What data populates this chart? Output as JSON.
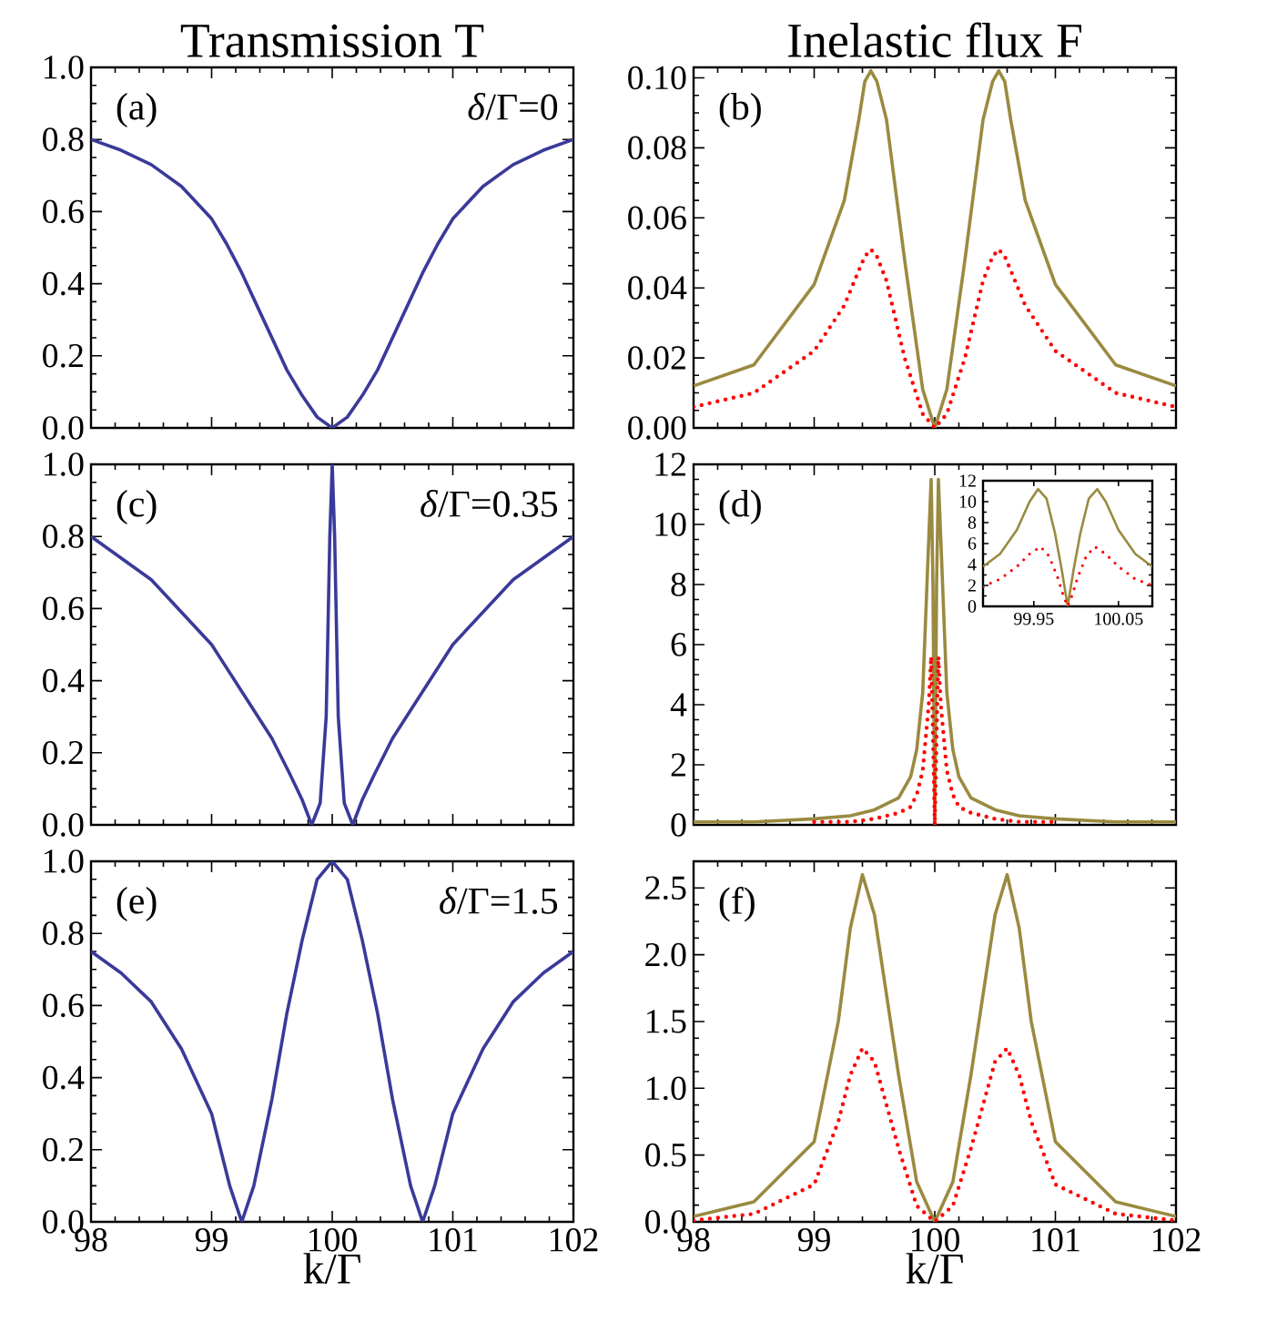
{
  "chart_data": [
    {
      "type": "line",
      "title": "Transmission T",
      "annotations": [
        "(a)",
        "*δ*/Γ=0"
      ],
      "xlim": [
        98,
        102
      ],
      "xticks": [
        98,
        99,
        100,
        101,
        102
      ],
      "ylim": [
        0,
        1
      ],
      "yticks": [
        {
          "value": 0,
          "label": "0.0"
        },
        {
          "value": 0.2,
          "label": "0.2"
        },
        {
          "value": 0.4,
          "label": "0.4"
        },
        {
          "value": 0.6,
          "label": "0.6"
        },
        {
          "value": 0.8,
          "label": "0.8"
        },
        {
          "value": 1,
          "label": "1.0"
        }
      ],
      "tick_labels": "y",
      "x": [
        98,
        98.25,
        98.5,
        98.75,
        99,
        99.125,
        99.25,
        99.375,
        99.5,
        99.625,
        99.75,
        99.875,
        100,
        100.125,
        100.25,
        100.375,
        100.5,
        100.625,
        100.75,
        100.875,
        101,
        101.25,
        101.5,
        101.75,
        102
      ],
      "series": [
        {
          "color": "#3a3a9a",
          "values": [
            0.8,
            0.77,
            0.73,
            0.67,
            0.58,
            0.51,
            0.43,
            0.34,
            0.25,
            0.16,
            0.09,
            0.03,
            0,
            0.03,
            0.09,
            0.16,
            0.25,
            0.34,
            0.43,
            0.51,
            0.58,
            0.67,
            0.73,
            0.77,
            0.8
          ]
        }
      ]
    },
    {
      "type": "line",
      "title": "Inelastic flux F",
      "annotations": [
        "(b)"
      ],
      "xlim": [
        98,
        102
      ],
      "xticks": [
        98,
        99,
        100,
        101,
        102
      ],
      "ylim": [
        0,
        0.103
      ],
      "yticks": [
        {
          "value": 0,
          "label": "0.00"
        },
        {
          "value": 0.02,
          "label": "0.02"
        },
        {
          "value": 0.04,
          "label": "0.04"
        },
        {
          "value": 0.06,
          "label": "0.06"
        },
        {
          "value": 0.08,
          "label": "0.08"
        },
        {
          "value": 0.1,
          "label": "0.10"
        }
      ],
      "tick_labels": "y",
      "x": [
        98,
        98.5,
        99,
        99.25,
        99.37,
        99.42,
        99.47,
        99.52,
        99.6,
        99.75,
        99.9,
        100,
        100.1,
        100.25,
        100.4,
        100.48,
        100.53,
        100.58,
        100.63,
        100.75,
        101,
        101.5,
        102
      ],
      "series": [
        {
          "color": "#9a8a40",
          "values": [
            0.012,
            0.018,
            0.041,
            0.065,
            0.088,
            0.099,
            0.102,
            0.099,
            0.088,
            0.048,
            0.011,
            0,
            0.011,
            0.048,
            0.088,
            0.099,
            0.102,
            0.099,
            0.088,
            0.065,
            0.041,
            0.018,
            0.012
          ]
        },
        {
          "color": "#ff0000",
          "line_style": "dotted",
          "values": [
            0.006,
            0.01,
            0.022,
            0.035,
            0.045,
            0.049,
            0.051,
            0.049,
            0.042,
            0.02,
            0.004,
            0,
            0.004,
            0.02,
            0.042,
            0.049,
            0.051,
            0.049,
            0.045,
            0.035,
            0.022,
            0.01,
            0.006
          ]
        }
      ]
    },
    {
      "type": "line",
      "annotations": [
        "(c)",
        "*δ*/Γ=0.35"
      ],
      "xlim": [
        98,
        102
      ],
      "xticks": [
        98,
        99,
        100,
        101,
        102
      ],
      "ylim": [
        0,
        1
      ],
      "yticks": [
        {
          "value": 0,
          "label": "0.0"
        },
        {
          "value": 0.2,
          "label": "0.2"
        },
        {
          "value": 0.4,
          "label": "0.4"
        },
        {
          "value": 0.6,
          "label": "0.6"
        },
        {
          "value": 0.8,
          "label": "0.8"
        },
        {
          "value": 1,
          "label": "1.0"
        }
      ],
      "tick_labels": "y",
      "x": [
        98,
        98.5,
        99,
        99.25,
        99.5,
        99.65,
        99.75,
        99.83,
        99.9,
        99.95,
        99.98,
        100,
        100.02,
        100.05,
        100.1,
        100.17,
        100.25,
        100.35,
        100.5,
        100.75,
        101,
        101.5,
        102
      ],
      "series": [
        {
          "color": "#3a3a9a",
          "values": [
            0.8,
            0.68,
            0.5,
            0.37,
            0.24,
            0.14,
            0.07,
            0,
            0.06,
            0.3,
            0.8,
            1.0,
            0.8,
            0.3,
            0.06,
            0,
            0.07,
            0.14,
            0.24,
            0.37,
            0.5,
            0.68,
            0.8
          ]
        }
      ]
    },
    {
      "type": "line",
      "annotations": [
        "(d)"
      ],
      "xlim": [
        98,
        102
      ],
      "xticks": [
        98,
        99,
        100,
        101,
        102
      ],
      "ylim": [
        0,
        12
      ],
      "yticks": [
        0,
        2,
        4,
        6,
        8,
        10,
        12
      ],
      "tick_labels": "y",
      "x": [
        98,
        98.5,
        99,
        99.3,
        99.5,
        99.7,
        99.8,
        99.85,
        99.9,
        99.95,
        99.97,
        99.985,
        100,
        100.015,
        100.03,
        100.05,
        100.1,
        100.15,
        100.2,
        100.3,
        100.5,
        100.7,
        101,
        101.5,
        102
      ],
      "series": [
        {
          "color": "#9a8a40",
          "values": [
            0.1,
            0.1,
            0.2,
            0.3,
            0.5,
            0.9,
            1.6,
            2.5,
            4.4,
            9.5,
            11.5,
            8,
            0,
            8,
            11.5,
            9.5,
            4.4,
            2.5,
            1.6,
            0.9,
            0.5,
            0.3,
            0.2,
            0.1,
            0.1
          ]
        },
        {
          "color": "#ff0000",
          "line_style": "dotted",
          "values": [
            null,
            null,
            0.1,
            0.1,
            0.2,
            0.4,
            0.6,
            1.0,
            1.8,
            4.0,
            5.6,
            3,
            0,
            3,
            5.6,
            4.0,
            1.8,
            1.0,
            0.6,
            0.4,
            0.2,
            0.1,
            0.1,
            null,
            null
          ]
        }
      ]
    },
    {
      "type": "line",
      "xlim": [
        99.89,
        100.09
      ],
      "xticks": [
        99.95,
        100.05
      ],
      "ylim": [
        0,
        12
      ],
      "yticks": [
        0,
        2,
        4,
        6,
        8,
        10,
        12
      ],
      "series": [
        {
          "color": "#9a8a40",
          "x": [
            99.89,
            99.91,
            99.93,
            99.945,
            99.955,
            99.965,
            99.975,
            99.983,
            99.99,
            99.997,
            100.005,
            100.015,
            100.025,
            100.035,
            100.05,
            100.07,
            100.09
          ],
          "values": [
            3.8,
            5.0,
            7.3,
            10.0,
            11.2,
            10.3,
            7.0,
            3.5,
            0,
            3.5,
            7.0,
            10.3,
            11.2,
            10.0,
            7.3,
            5.0,
            3.8
          ]
        },
        {
          "color": "#ff0000",
          "line_style": "dotted",
          "x": [
            99.89,
            99.91,
            99.93,
            99.945,
            99.958,
            99.968,
            99.978,
            99.985,
            99.99,
            99.995,
            100.002,
            100.012,
            100.022,
            100.035,
            100.05,
            100.07,
            100.09
          ],
          "values": [
            1.9,
            2.6,
            3.8,
            5.0,
            5.7,
            4.8,
            2.8,
            1.0,
            0,
            1.0,
            2.8,
            4.8,
            5.7,
            5.0,
            3.8,
            2.6,
            2.0
          ]
        }
      ]
    },
    {
      "type": "line",
      "xlabel": "k/Γ",
      "annotations": [
        "(e)",
        "*δ*/Γ=1.5"
      ],
      "xlim": [
        98,
        102
      ],
      "xticks": [
        98,
        99,
        100,
        101,
        102
      ],
      "ylim": [
        0,
        1
      ],
      "yticks": [
        {
          "value": 0,
          "label": "0.0"
        },
        {
          "value": 0.2,
          "label": "0.2"
        },
        {
          "value": 0.4,
          "label": "0.4"
        },
        {
          "value": 0.6,
          "label": "0.6"
        },
        {
          "value": 0.8,
          "label": "0.8"
        },
        {
          "value": 1,
          "label": "1.0"
        }
      ],
      "x": [
        98,
        98.25,
        98.5,
        98.75,
        99,
        99.15,
        99.25,
        99.35,
        99.5,
        99.625,
        99.75,
        99.875,
        100,
        100.125,
        100.25,
        100.375,
        100.5,
        100.65,
        100.75,
        100.85,
        101,
        101.25,
        101.5,
        101.75,
        102
      ],
      "series": [
        {
          "color": "#3a3a9a",
          "values": [
            0.75,
            0.69,
            0.61,
            0.48,
            0.3,
            0.1,
            0,
            0.1,
            0.34,
            0.58,
            0.78,
            0.95,
            1.0,
            0.95,
            0.78,
            0.58,
            0.34,
            0.1,
            0,
            0.1,
            0.3,
            0.48,
            0.61,
            0.69,
            0.75
          ]
        }
      ]
    },
    {
      "type": "line",
      "xlabel": "k/Γ",
      "annotations": [
        "(f)"
      ],
      "xlim": [
        98,
        102
      ],
      "xticks": [
        98,
        99,
        100,
        101,
        102
      ],
      "ylim": [
        0,
        2.7
      ],
      "yticks": [
        {
          "value": 0,
          "label": "0.0"
        },
        {
          "value": 0.5,
          "label": "0.5"
        },
        {
          "value": 1,
          "label": "1.0"
        },
        {
          "value": 1.5,
          "label": "1.5"
        },
        {
          "value": 2,
          "label": "2.0"
        },
        {
          "value": 2.5,
          "label": "2.5"
        }
      ],
      "x": [
        98,
        98.5,
        99,
        99.2,
        99.3,
        99.4,
        99.5,
        99.7,
        99.85,
        100,
        100.15,
        100.3,
        100.5,
        100.6,
        100.7,
        100.8,
        101,
        101.5,
        102
      ],
      "series": [
        {
          "color": "#9a8a40",
          "values": [
            0.04,
            0.15,
            0.6,
            1.5,
            2.2,
            2.6,
            2.3,
            1.1,
            0.3,
            0,
            0.3,
            1.1,
            2.3,
            2.6,
            2.2,
            1.5,
            0.6,
            0.15,
            0.04
          ]
        },
        {
          "color": "#ff0000",
          "line_style": "dotted",
          "values": [
            0.01,
            0.06,
            0.28,
            0.75,
            1.1,
            1.3,
            1.2,
            0.55,
            0.12,
            0,
            0.12,
            0.55,
            1.2,
            1.3,
            1.1,
            0.75,
            0.28,
            0.06,
            0.01
          ]
        }
      ]
    }
  ]
}
